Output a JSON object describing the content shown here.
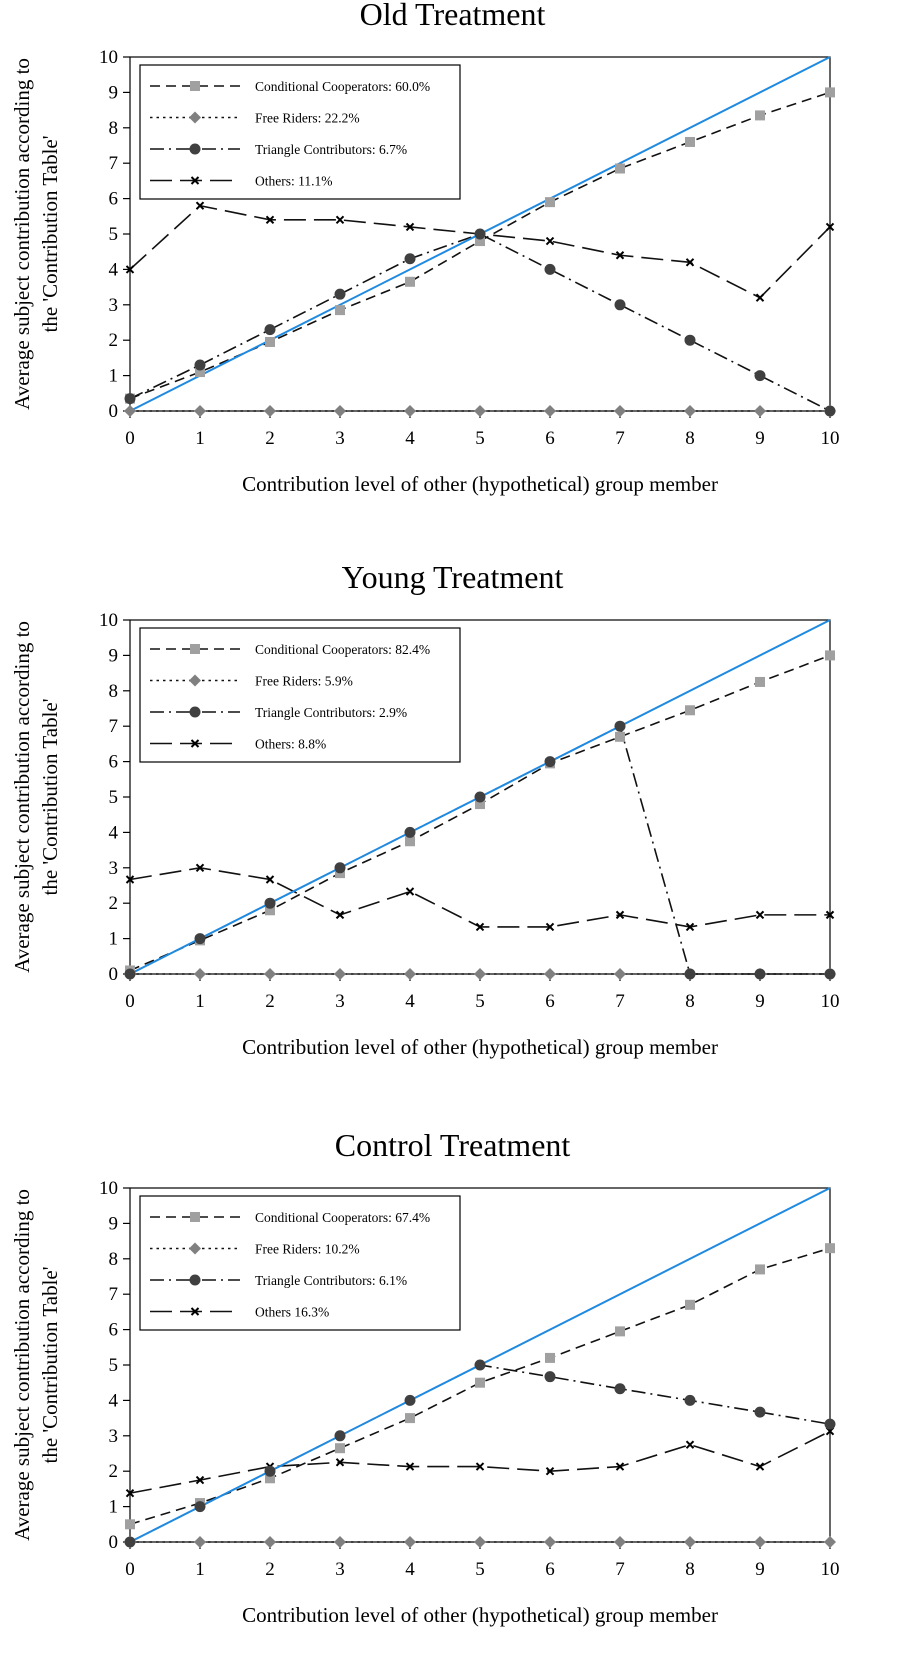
{
  "chart_data": [
    {
      "type": "line",
      "title": "Old Treatment",
      "xlabel": "Contribution level of other (hypothetical) group member",
      "ylabel": "Average subject contribution according to the 'Contribution Table'",
      "ylabel_lines": [
        "Average subject contribution according to",
        "the 'Contribution Table'"
      ],
      "x": [
        0,
        1,
        2,
        3,
        4,
        5,
        6,
        7,
        8,
        9,
        10
      ],
      "xlim": [
        0,
        10
      ],
      "ylim": [
        0,
        10
      ],
      "xticks": [
        "0",
        "1",
        "2",
        "3",
        "4",
        "5",
        "6",
        "7",
        "8",
        "9",
        "10"
      ],
      "yticks": [
        "0",
        "1",
        "2",
        "3",
        "4",
        "5",
        "6",
        "7",
        "8",
        "9",
        "10"
      ],
      "legend_position": "top-left",
      "grid": false,
      "series": [
        {
          "name": "Conditional Cooperators: 60.0%",
          "marker": "square",
          "dash": "dashed",
          "color": "#a0a0a0",
          "values": [
            0.35,
            1.1,
            1.95,
            2.85,
            3.65,
            4.8,
            5.9,
            6.85,
            7.6,
            8.35,
            9.0
          ]
        },
        {
          "name": "Free Riders: 22.2%",
          "marker": "diamond",
          "dash": "dotted",
          "color": "#808080",
          "values": [
            0,
            0,
            0,
            0,
            0,
            0,
            0,
            0,
            0,
            0,
            0
          ]
        },
        {
          "name": "Triangle Contributors: 6.7%",
          "marker": "circle",
          "dash": "dashdot",
          "color": "#404040",
          "values": [
            0.35,
            1.3,
            2.3,
            3.3,
            4.3,
            5.0,
            4.0,
            3.0,
            2.0,
            1.0,
            0.0
          ]
        },
        {
          "name": "Others: 11.1%",
          "marker": "x",
          "dash": "longdash",
          "color": "#000000",
          "values": [
            4.0,
            5.8,
            5.4,
            5.4,
            5.2,
            5.0,
            4.8,
            4.4,
            4.2,
            3.2,
            5.2
          ]
        }
      ],
      "reference_line": {
        "color": "#1f8ae0",
        "from": [
          0,
          0
        ],
        "to": [
          10,
          10
        ]
      }
    },
    {
      "type": "line",
      "title": "Young Treatment",
      "xlabel": "Contribution level of other (hypothetical) group member",
      "ylabel": "Average subject contribution according to the 'Contribution Table'",
      "ylabel_lines": [
        "Average subject contribution according to",
        "the 'Contribution Table'"
      ],
      "x": [
        0,
        1,
        2,
        3,
        4,
        5,
        6,
        7,
        8,
        9,
        10
      ],
      "xlim": [
        0,
        10
      ],
      "ylim": [
        0,
        10
      ],
      "xticks": [
        "0",
        "1",
        "2",
        "3",
        "4",
        "5",
        "6",
        "7",
        "8",
        "9",
        "10"
      ],
      "yticks": [
        "0",
        "1",
        "2",
        "3",
        "4",
        "5",
        "6",
        "7",
        "8",
        "9",
        "10"
      ],
      "legend_position": "top-left",
      "grid": false,
      "series": [
        {
          "name": "Conditional Cooperators: 82.4%",
          "marker": "square",
          "dash": "dashed",
          "color": "#a0a0a0",
          "values": [
            0.1,
            0.95,
            1.8,
            2.85,
            3.75,
            4.8,
            5.95,
            6.7,
            7.45,
            8.25,
            9.0
          ]
        },
        {
          "name": "Free Riders: 5.9%",
          "marker": "diamond",
          "dash": "dotted",
          "color": "#808080",
          "values": [
            0,
            0,
            0,
            0,
            0,
            0,
            0,
            0,
            0,
            0,
            0
          ]
        },
        {
          "name": "Triangle Contributors: 2.9%",
          "marker": "circle",
          "dash": "dashdot",
          "color": "#404040",
          "values": [
            0,
            1.0,
            2.0,
            3.0,
            4.0,
            5.0,
            6.0,
            7.0,
            0,
            0,
            0
          ]
        },
        {
          "name": "Others: 8.8%",
          "marker": "x",
          "dash": "longdash",
          "color": "#000000",
          "values": [
            2.67,
            3.0,
            2.67,
            1.67,
            2.33,
            1.33,
            1.33,
            1.67,
            1.33,
            1.67,
            1.67
          ]
        }
      ],
      "reference_line": {
        "color": "#1f8ae0",
        "from": [
          0,
          0
        ],
        "to": [
          10,
          10
        ]
      }
    },
    {
      "type": "line",
      "title": "Control Treatment",
      "xlabel": "Contribution level of other (hypothetical) group member",
      "ylabel": "Average subject contribution according to the 'Contribution Table'",
      "ylabel_lines": [
        "Average subject contribution according to",
        "the 'Contribution Table'"
      ],
      "x": [
        0,
        1,
        2,
        3,
        4,
        5,
        6,
        7,
        8,
        9,
        10
      ],
      "xlim": [
        0,
        10
      ],
      "ylim": [
        0,
        10
      ],
      "xticks": [
        "0",
        "1",
        "2",
        "3",
        "4",
        "5",
        "6",
        "7",
        "8",
        "9",
        "10"
      ],
      "yticks": [
        "0",
        "1",
        "2",
        "3",
        "4",
        "5",
        "6",
        "7",
        "8",
        "9",
        "10"
      ],
      "legend_position": "top-left",
      "grid": false,
      "series": [
        {
          "name": "Conditional Cooperators: 67.4%",
          "marker": "square",
          "dash": "dashed",
          "color": "#a0a0a0",
          "values": [
            0.5,
            1.1,
            1.8,
            2.65,
            3.5,
            4.5,
            5.2,
            5.95,
            6.7,
            7.7,
            8.3
          ]
        },
        {
          "name": "Free Riders: 10.2%",
          "marker": "diamond",
          "dash": "dotted",
          "color": "#808080",
          "values": [
            0,
            0,
            0,
            0,
            0,
            0,
            0,
            0,
            0,
            0,
            0
          ]
        },
        {
          "name": "Triangle Contributors: 6.1%",
          "marker": "circle",
          "dash": "dashdot",
          "color": "#404040",
          "values": [
            0,
            1.0,
            2.0,
            3.0,
            4.0,
            5.0,
            4.67,
            4.33,
            4.0,
            3.67,
            3.33
          ]
        },
        {
          "name": "Others 16.3%",
          "marker": "x",
          "dash": "longdash",
          "color": "#000000",
          "values": [
            1.38,
            1.75,
            2.13,
            2.25,
            2.13,
            2.13,
            2.0,
            2.13,
            2.75,
            2.13,
            3.13
          ]
        }
      ],
      "reference_line": {
        "color": "#1f8ae0",
        "from": [
          0,
          0
        ],
        "to": [
          10,
          10
        ]
      }
    }
  ]
}
